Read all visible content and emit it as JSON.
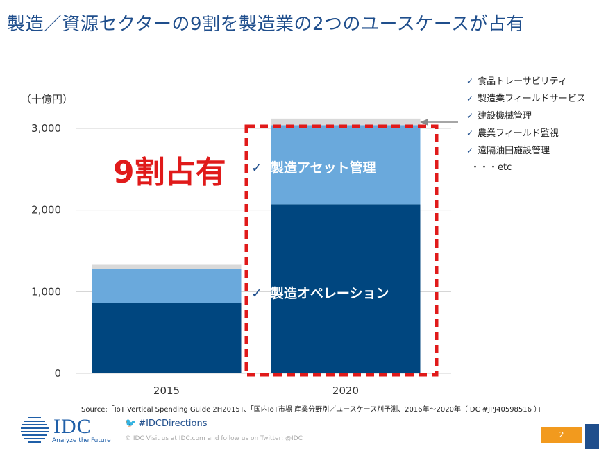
{
  "title": "製造／資源セクターの9割を製造業の2つのユースケースが占有",
  "unit": "（十億円）",
  "highlight": "9割占有",
  "segment_labels": {
    "asset": "製造アセット管理",
    "operations": "製造オペレーション",
    "check": "✓"
  },
  "legend": {
    "items": [
      "食品トレーサビリティ",
      "製造業フィールドサービス",
      "建設機械管理",
      "農業フィールド監視",
      "遠隔油田施設管理"
    ],
    "etc": "・・・etc"
  },
  "chart_data": {
    "type": "bar",
    "stacked": true,
    "categories": [
      "2015",
      "2020"
    ],
    "series": [
      {
        "name": "製造オペレーション",
        "values": [
          860,
          2070
        ],
        "color": "#00467f"
      },
      {
        "name": "製造アセット管理",
        "values": [
          420,
          970
        ],
        "color": "#6aa9dc"
      },
      {
        "name": "",
        "values": [
          50,
          80
        ],
        "color": "#d9d9d9"
      }
    ],
    "ylim": [
      0,
      3000
    ],
    "yticks": [
      0,
      1000,
      2000,
      3000
    ],
    "ytick_labels": [
      "0",
      "1,000",
      "2,000",
      "3,000"
    ],
    "grid": true,
    "annotation_color": "#e01a1a"
  },
  "source": "Source:「IoT Vertical Spending Guide 2H2015」、「国内IoT市場 産業分野別／ユースケース別予測、2016年～2020年（IDC #JPJ40598516 ）」",
  "footer": {
    "logo_text": "IDC",
    "logo_tagline": "Analyze the Future",
    "twitter": "#IDCDirections",
    "note": "© IDC   Visit us at IDC.com and follow us on Twitter: @IDC",
    "page": "2"
  }
}
